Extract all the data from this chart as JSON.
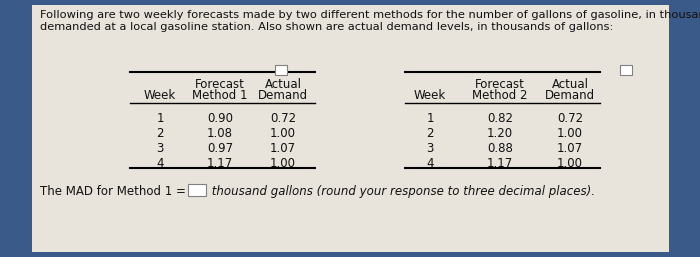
{
  "header_text": "Following are two weekly forecasts made by two different methods for the number of gallons of gasoline, in thousands,\ndemanded at a local gasoline station. Also shown are actual demand levels, in thousands of gallons:",
  "table1": {
    "col_headers_line1": [
      "",
      "Forecast",
      "Actual"
    ],
    "col_headers_line2": [
      "Week",
      "Method 1",
      "Demand"
    ],
    "rows": [
      [
        "1",
        "0.90",
        "0.72"
      ],
      [
        "2",
        "1.08",
        "1.00"
      ],
      [
        "3",
        "0.97",
        "1.07"
      ],
      [
        "4",
        "1.17",
        "1.00"
      ]
    ]
  },
  "table2": {
    "col_headers_line1": [
      "",
      "Forecast",
      "Actual"
    ],
    "col_headers_line2": [
      "Week",
      "Method 2",
      "Demand"
    ],
    "rows": [
      [
        "1",
        "0.82",
        "0.72"
      ],
      [
        "2",
        "1.20",
        "1.00"
      ],
      [
        "3",
        "0.88",
        "1.07"
      ],
      [
        "4",
        "1.17",
        "1.00"
      ]
    ]
  },
  "footer_text_plain": "The MAD for Method 1 = ",
  "footer_text_italic": " thousand gallons (round your response to three decimal places).",
  "bg_color": "#3a5a8a",
  "panel_color": "#e8e4dc",
  "text_color": "#111111",
  "header_fontsize": 8.2,
  "table_fontsize": 8.5,
  "footer_fontsize": 8.5
}
